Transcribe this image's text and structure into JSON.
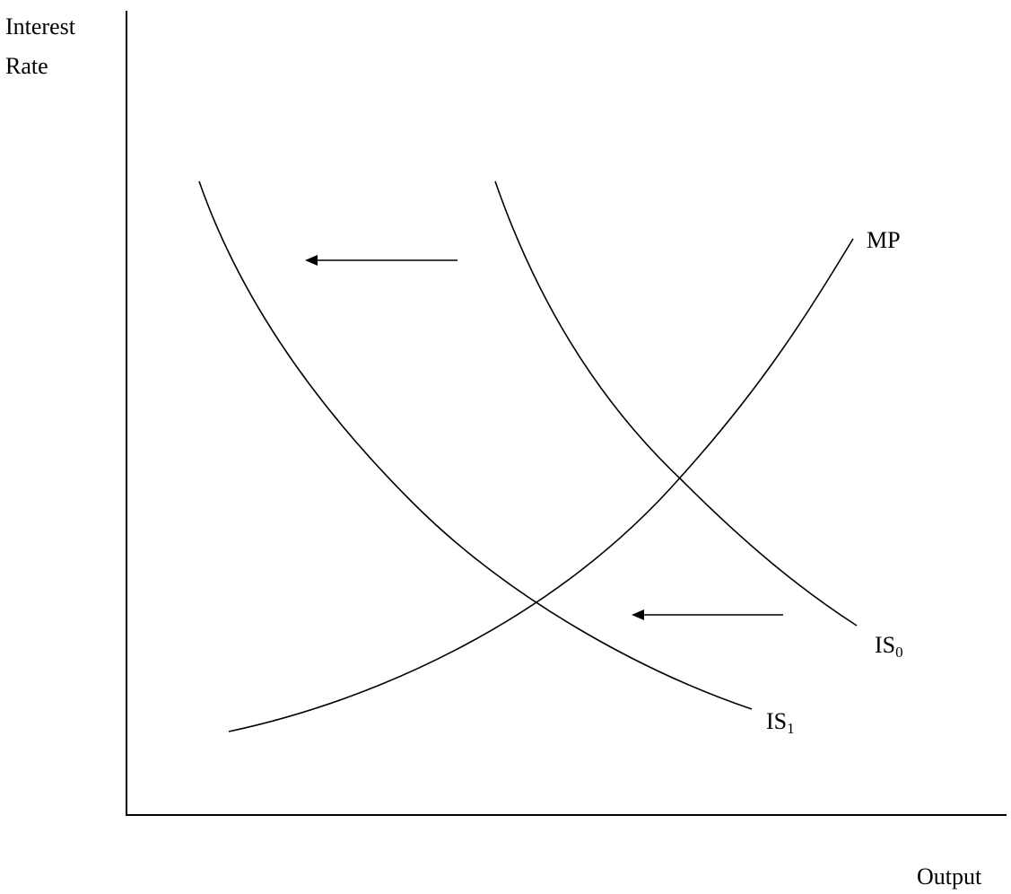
{
  "axes": {
    "y_label_line1": "Interest",
    "y_label_line2": "Rate",
    "x_label": "Output"
  },
  "curves": {
    "mp": {
      "label": "MP"
    },
    "is0": {
      "label_main": "IS",
      "label_sub": "0"
    },
    "is1": {
      "label_main": "IS",
      "label_sub": "1"
    }
  },
  "arrows": [
    {
      "name": "shift-arrow-upper",
      "direction": "left"
    },
    {
      "name": "shift-arrow-lower",
      "direction": "left"
    }
  ]
}
